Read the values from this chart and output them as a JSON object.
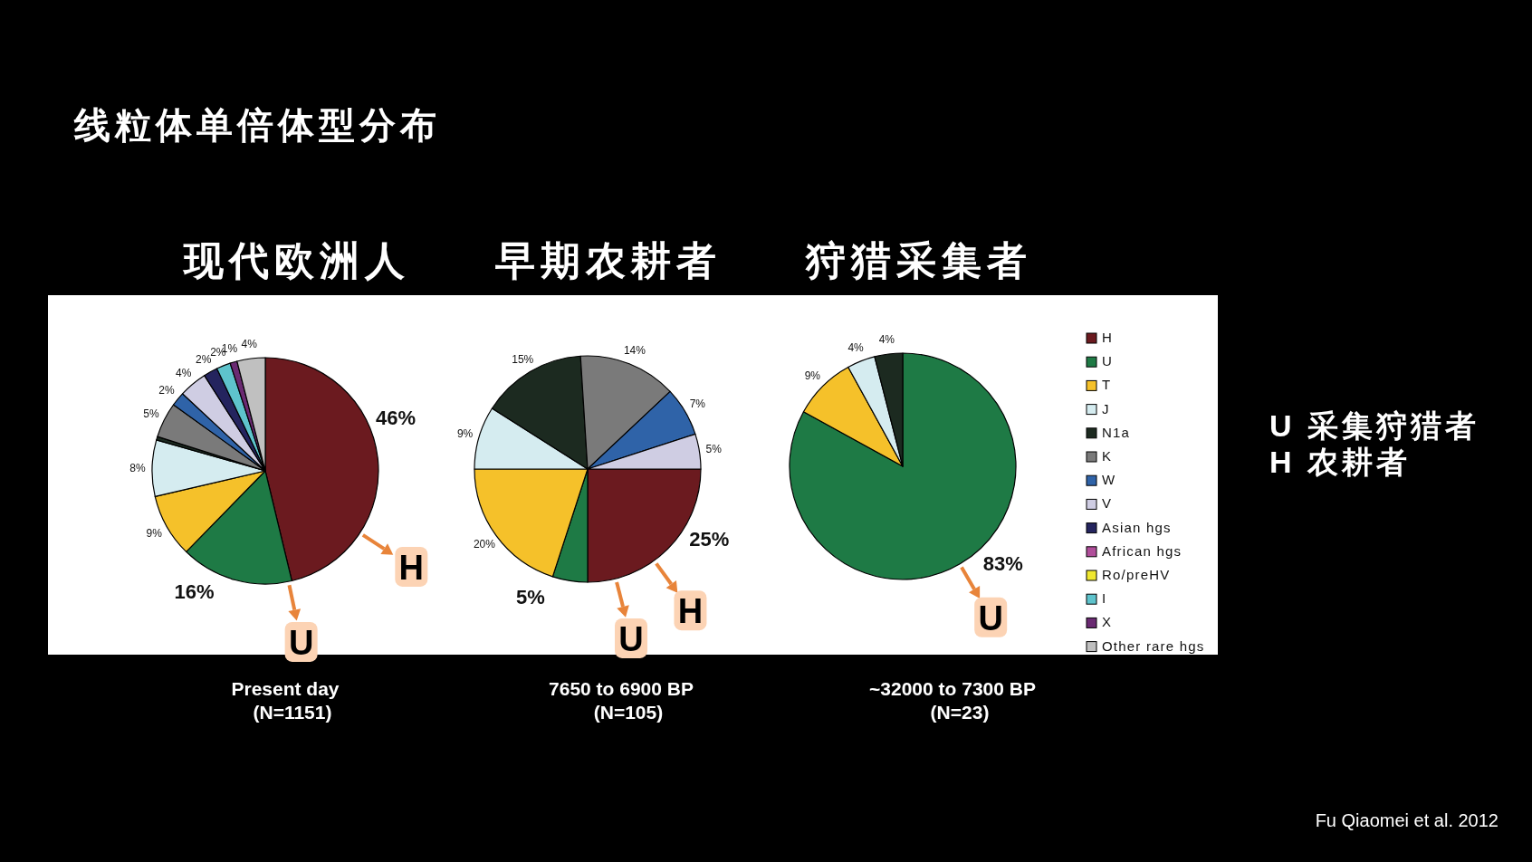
{
  "chart_data": [
    {
      "type": "other",
      "title": "线粒体单倍体型分布",
      "annotations": [
        "U 采集狩猎者",
        "H 农耕者",
        "Fu Qiaomei et al. 2012"
      ]
    },
    {
      "type": "pie",
      "title": "现代欧洲人",
      "subtitle": "Present day\n(N=1151)",
      "legend": "right",
      "categories": [
        "H",
        "U",
        "T",
        "J",
        "N1a",
        "K",
        "W",
        "V",
        "Asian hgs",
        "African hgs",
        "Ro/preHV",
        "I",
        "X",
        "Other rare hgs"
      ],
      "values": [
        46,
        16,
        9,
        8,
        0.5,
        5,
        2,
        4,
        2,
        null,
        null,
        2,
        1,
        4
      ],
      "value_labels": [
        "46%",
        "16%",
        "9%",
        "8%",
        null,
        "5%",
        "2%",
        "4%",
        "2%",
        null,
        null,
        "2%",
        "1%",
        "4%"
      ],
      "colors": [
        "#6b1a1f",
        "#1e7a45",
        "#f5c12a",
        "#d5ecf0",
        "#1c2a20",
        "#7a7a7a",
        "#2f63a8",
        "#cfcde3",
        "#24245e",
        "#b04e9a",
        "#f0e830",
        "#5ec3cc",
        "#6a2a72",
        "#c0c0c0"
      ],
      "annotations": [
        "H",
        "U"
      ]
    },
    {
      "type": "pie",
      "title": "早期农耕者",
      "subtitle": "7650 to 6900 BP\n(N=105)",
      "categories": [
        null,
        null,
        null,
        null,
        null,
        null,
        null,
        null
      ],
      "values": [
        25,
        5,
        20,
        9,
        15,
        14,
        7,
        5
      ],
      "value_labels": [
        "25%",
        "5%",
        "20%",
        "9%",
        "15%",
        "14%",
        "7%",
        "5%"
      ],
      "colors": [
        "#6b1a1f",
        "#1e7a45",
        "#f5c12a",
        "#d5ecf0",
        "#1c2a20",
        "#7a7a7a",
        "#2f63a8",
        "#cfcde3"
      ],
      "annotations": [
        "H",
        "U"
      ]
    },
    {
      "type": "pie",
      "title": "狩猎采集者",
      "subtitle": "~32000 to 7300 BP\n(N=23)",
      "categories": [
        null,
        null,
        null,
        null
      ],
      "values": [
        83,
        9,
        4,
        4
      ],
      "value_labels": [
        "83%",
        "9%",
        "4%",
        "4%"
      ],
      "colors": [
        "#1e7a45",
        "#f5c12a",
        "#d5ecf0",
        "#1c2a20"
      ],
      "annotations": [
        "U"
      ]
    }
  ]
}
